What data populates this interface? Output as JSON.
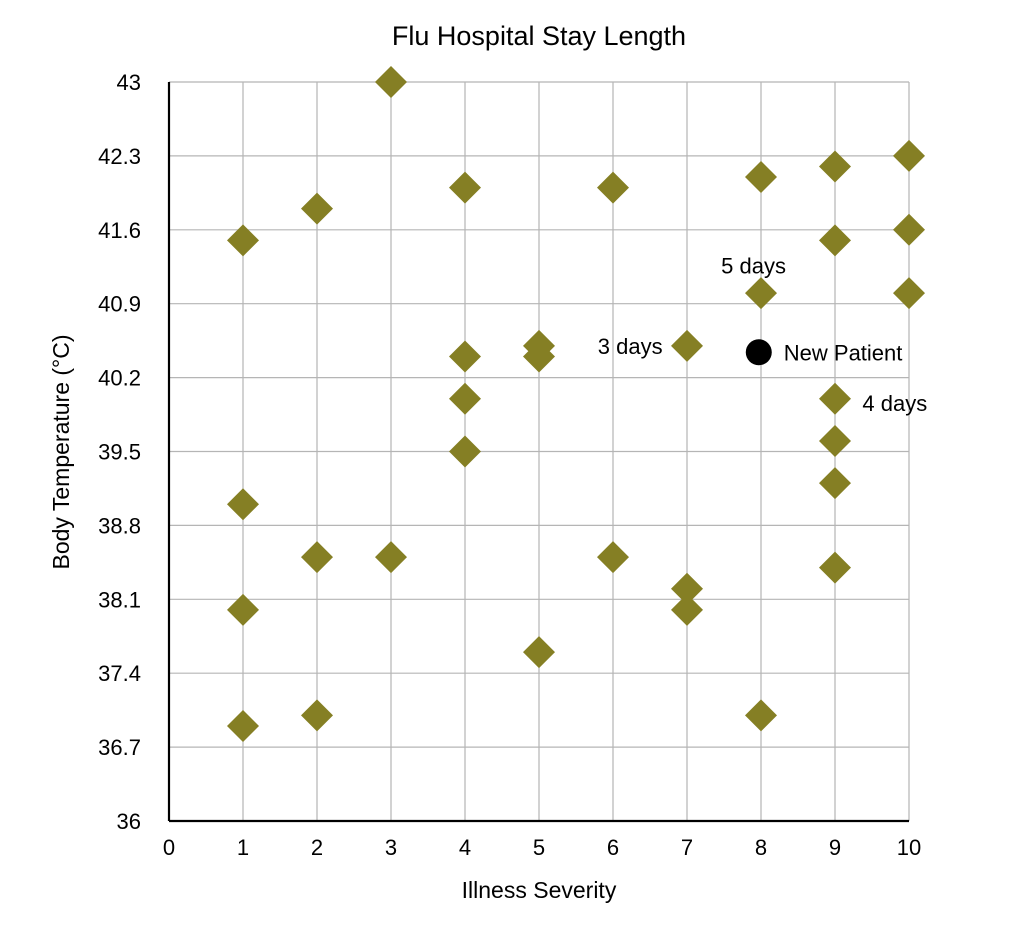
{
  "chart_data": {
    "type": "scatter",
    "title": "Flu Hospital Stay Length",
    "xlabel": "Illness Severity",
    "ylabel": "Body Temperature (°C)",
    "xlim": [
      0,
      10
    ],
    "ylim": [
      36,
      43
    ],
    "x_ticks": [
      "0",
      "1",
      "2",
      "3",
      "4",
      "5",
      "6",
      "7",
      "8",
      "9",
      "10"
    ],
    "y_ticks": [
      "36",
      "36.7",
      "37.4",
      "38.1",
      "38.8",
      "39.5",
      "40.2",
      "40.9",
      "41.6",
      "42.3",
      "43"
    ],
    "grid": true,
    "marker_color": "#857f24",
    "highlight_color": "#000000",
    "points": [
      {
        "x": 1,
        "y": 41.5
      },
      {
        "x": 1,
        "y": 39.0
      },
      {
        "x": 1,
        "y": 38.0
      },
      {
        "x": 1,
        "y": 36.9
      },
      {
        "x": 2,
        "y": 41.8
      },
      {
        "x": 2,
        "y": 38.5
      },
      {
        "x": 2,
        "y": 37.0
      },
      {
        "x": 3,
        "y": 43.0
      },
      {
        "x": 3,
        "y": 38.5
      },
      {
        "x": 4,
        "y": 42.0
      },
      {
        "x": 4,
        "y": 40.4
      },
      {
        "x": 4,
        "y": 40.0
      },
      {
        "x": 4,
        "y": 39.5
      },
      {
        "x": 5,
        "y": 40.5
      },
      {
        "x": 5,
        "y": 40.4
      },
      {
        "x": 5,
        "y": 37.6
      },
      {
        "x": 6,
        "y": 42.0
      },
      {
        "x": 6,
        "y": 38.5
      },
      {
        "x": 7,
        "y": 40.5
      },
      {
        "x": 7,
        "y": 38.2
      },
      {
        "x": 7,
        "y": 38.0
      },
      {
        "x": 8,
        "y": 42.1
      },
      {
        "x": 8,
        "y": 41.0
      },
      {
        "x": 8,
        "y": 37.0
      },
      {
        "x": 9,
        "y": 42.2
      },
      {
        "x": 9,
        "y": 41.5
      },
      {
        "x": 9,
        "y": 40.0
      },
      {
        "x": 9,
        "y": 39.6
      },
      {
        "x": 9,
        "y": 39.2
      },
      {
        "x": 9,
        "y": 38.4
      },
      {
        "x": 10,
        "y": 42.3
      },
      {
        "x": 10,
        "y": 41.6
      },
      {
        "x": 10,
        "y": 41.0
      }
    ],
    "highlight_point": {
      "x": 7.97,
      "y": 40.44,
      "label": "New Patient"
    },
    "annotations": [
      {
        "text": "5 days",
        "x": 7.9,
        "y": 41.26,
        "anchor": "middle"
      },
      {
        "text": "3 days",
        "x": 6.67,
        "y": 40.5,
        "anchor": "end"
      },
      {
        "text": "4 days",
        "x": 9.37,
        "y": 39.96,
        "anchor": "start"
      }
    ]
  }
}
